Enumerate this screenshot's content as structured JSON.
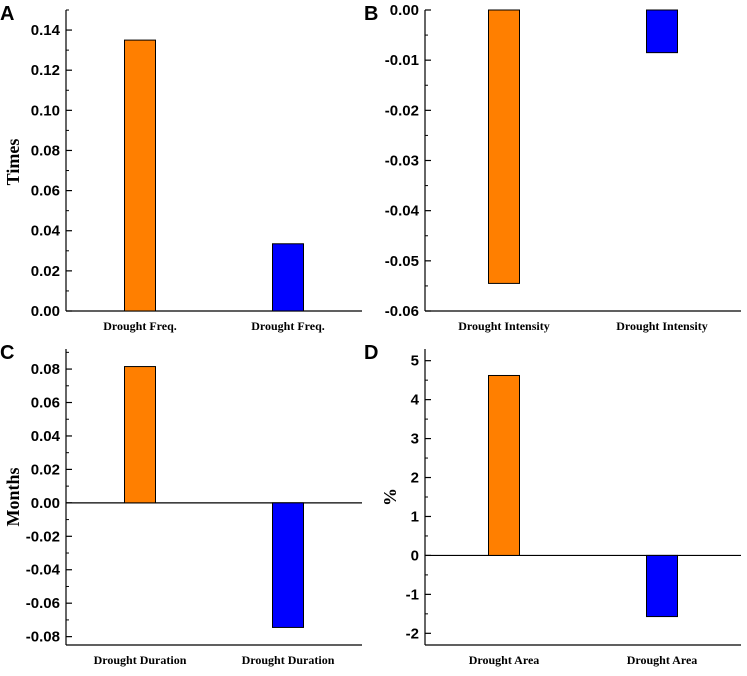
{
  "colors": {
    "orange": "#ff7f00",
    "blue": "#0000ff",
    "axis": "#000000"
  },
  "chart_data": [
    {
      "panel": "A",
      "type": "bar",
      "categories": [
        "Drought Freq.",
        "Drought Freq."
      ],
      "values": [
        0.135,
        0.0335
      ],
      "ylabel": "Times",
      "ylim": [
        0,
        0.15
      ],
      "yticks": [
        0,
        0.02,
        0.04,
        0.06,
        0.08,
        0.1,
        0.12,
        0.14
      ],
      "ytick_labels": [
        "0.00",
        "0.02",
        "0.04",
        "0.06",
        "0.08",
        "0.10",
        "0.12",
        "0.14"
      ],
      "minor_step": 0.01,
      "bar_colors": [
        "#ff7f00",
        "#0000ff"
      ]
    },
    {
      "panel": "B",
      "type": "bar",
      "categories": [
        "Drought Intensity",
        "Drought Intensity"
      ],
      "values": [
        -0.0545,
        -0.0085
      ],
      "ylabel": "",
      "ylim": [
        -0.06,
        0
      ],
      "yticks": [
        -0.06,
        -0.05,
        -0.04,
        -0.03,
        -0.02,
        -0.01,
        0
      ],
      "ytick_labels": [
        "-0.06",
        "-0.05",
        "-0.04",
        "-0.03",
        "-0.02",
        "-0.01",
        "0.00"
      ],
      "minor_step": 0.005,
      "bar_colors": [
        "#ff7f00",
        "#0000ff"
      ]
    },
    {
      "panel": "C",
      "type": "bar",
      "categories": [
        "Drought Duration",
        "Drought Duration"
      ],
      "values": [
        0.0815,
        -0.0745
      ],
      "ylabel": "Months",
      "ylim": [
        -0.085,
        0.092
      ],
      "yticks": [
        -0.08,
        -0.06,
        -0.04,
        -0.02,
        0,
        0.02,
        0.04,
        0.06,
        0.08
      ],
      "ytick_labels": [
        "-0.08",
        "-0.06",
        "-0.04",
        "-0.02",
        "0.00",
        "0.02",
        "0.04",
        "0.06",
        "0.08"
      ],
      "minor_step": 0.01,
      "bar_colors": [
        "#ff7f00",
        "#0000ff"
      ]
    },
    {
      "panel": "D",
      "type": "bar",
      "categories": [
        "Drought Area",
        "Drought Area"
      ],
      "values": [
        4.62,
        -1.57
      ],
      "ylabel": "%",
      "ylim": [
        -2.3,
        5.3
      ],
      "yticks": [
        -2,
        -1,
        0,
        1,
        2,
        3,
        4,
        5
      ],
      "ytick_labels": [
        "-2",
        "-1",
        "0",
        "1",
        "2",
        "3",
        "4",
        "5"
      ],
      "minor_step": 0.5,
      "bar_colors": [
        "#ff7f00",
        "#0000ff"
      ]
    }
  ]
}
